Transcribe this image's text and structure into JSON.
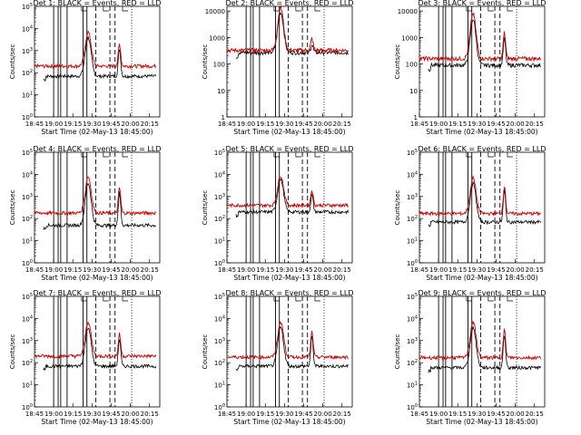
{
  "chart_data": {
    "type": "line",
    "x_ticks": [
      "18:45",
      "19:00",
      "19:15",
      "19:30",
      "19:45",
      "20:00",
      "20:15"
    ],
    "xlabel": "Start Time (02-May-13 18:45:00)",
    "ylabel": "Counts/sec",
    "x_range_minutes": [
      0,
      98
    ],
    "panels": [
      {
        "title": "Det 1: BLACK = Events, RED = LLD",
        "ylim": [
          1,
          100000
        ],
        "ytick_exponents": [
          0,
          1,
          2,
          3,
          4,
          5
        ],
        "ytick_style": "power",
        "black_level": 70,
        "red_level": 200,
        "black_peak": 4000,
        "red_peak": 7000,
        "red_post_peak": 2000,
        "series": [
          {
            "name": "Events",
            "color": "#000000"
          },
          {
            "name": "LLD",
            "color": "#cc0000"
          }
        ]
      },
      {
        "title": "Det 2: BLACK = Events, RED = LLD",
        "ylim": [
          1,
          15000
        ],
        "ytick_labels": [
          "1",
          "10",
          "100",
          "1000",
          "10000"
        ],
        "ytick_style": "plain",
        "black_level": 270,
        "red_level": 330,
        "black_peak": 9000,
        "red_peak": 14000,
        "red_post_peak": 900,
        "series": [
          {
            "name": "Events",
            "color": "#000000"
          },
          {
            "name": "LLD",
            "color": "#cc0000"
          }
        ]
      },
      {
        "title": "Det 3: BLACK = Events, RED = LLD",
        "ylim": [
          1,
          15000
        ],
        "ytick_labels": [
          "1",
          "10",
          "100",
          "1000",
          "10000"
        ],
        "ytick_style": "plain",
        "black_level": 90,
        "red_level": 160,
        "black_peak": 5000,
        "red_peak": 8000,
        "red_post_peak": 1500,
        "series": [
          {
            "name": "Events",
            "color": "#000000"
          },
          {
            "name": "LLD",
            "color": "#cc0000"
          }
        ]
      },
      {
        "title": "Det 4: BLACK = Events, RED = LLD",
        "ylim": [
          1,
          100000
        ],
        "ytick_exponents": [
          0,
          1,
          2,
          3,
          4,
          5
        ],
        "ytick_style": "power",
        "black_level": 50,
        "red_level": 180,
        "black_peak": 4000,
        "red_peak": 8000,
        "red_post_peak": 2500,
        "series": [
          {
            "name": "Events",
            "color": "#000000"
          },
          {
            "name": "LLD",
            "color": "#cc0000"
          }
        ]
      },
      {
        "title": "Det 5: BLACK = Events, RED = LLD",
        "ylim": [
          1,
          100000
        ],
        "ytick_exponents": [
          0,
          1,
          2,
          3,
          4,
          5
        ],
        "ytick_style": "power",
        "black_level": 200,
        "red_level": 400,
        "black_peak": 6000,
        "red_peak": 9000,
        "red_post_peak": 2000,
        "series": [
          {
            "name": "Events",
            "color": "#000000"
          },
          {
            "name": "LLD",
            "color": "#cc0000"
          }
        ]
      },
      {
        "title": "Det 6: BLACK = Events, RED = LLD",
        "ylim": [
          1,
          100000
        ],
        "ytick_exponents": [
          0,
          1,
          2,
          3,
          4,
          5
        ],
        "ytick_style": "power",
        "black_level": 70,
        "red_level": 170,
        "black_peak": 4000,
        "red_peak": 7000,
        "red_post_peak": 3000,
        "series": [
          {
            "name": "Events",
            "color": "#000000"
          },
          {
            "name": "LLD",
            "color": "#cc0000"
          }
        ]
      },
      {
        "title": "Det 7: BLACK = Events, RED = LLD",
        "ylim": [
          1,
          100000
        ],
        "ytick_exponents": [
          0,
          1,
          2,
          3,
          4,
          5
        ],
        "ytick_style": "power",
        "black_level": 70,
        "red_level": 200,
        "black_peak": 4000,
        "red_peak": 7000,
        "red_post_peak": 2000,
        "series": [
          {
            "name": "Events",
            "color": "#000000"
          },
          {
            "name": "LLD",
            "color": "#cc0000"
          }
        ]
      },
      {
        "title": "Det 8: BLACK = Events, RED = LLD",
        "ylim": [
          1,
          100000
        ],
        "ytick_exponents": [
          0,
          1,
          2,
          3,
          4,
          5
        ],
        "ytick_style": "power",
        "black_level": 70,
        "red_level": 180,
        "black_peak": 4000,
        "red_peak": 7000,
        "red_post_peak": 2500,
        "series": [
          {
            "name": "Events",
            "color": "#000000"
          },
          {
            "name": "LLD",
            "color": "#cc0000"
          }
        ]
      },
      {
        "title": "Det 9: BLACK = Events, RED = LLD",
        "ylim": [
          1,
          100000
        ],
        "ytick_exponents": [
          0,
          1,
          2,
          3,
          4,
          5
        ],
        "ytick_style": "power",
        "black_level": 60,
        "red_level": 170,
        "black_peak": 4000,
        "red_peak": 7000,
        "red_post_peak": 3000,
        "series": [
          {
            "name": "Events",
            "color": "#000000"
          },
          {
            "name": "LLD",
            "color": "#cc0000"
          }
        ]
      }
    ]
  }
}
